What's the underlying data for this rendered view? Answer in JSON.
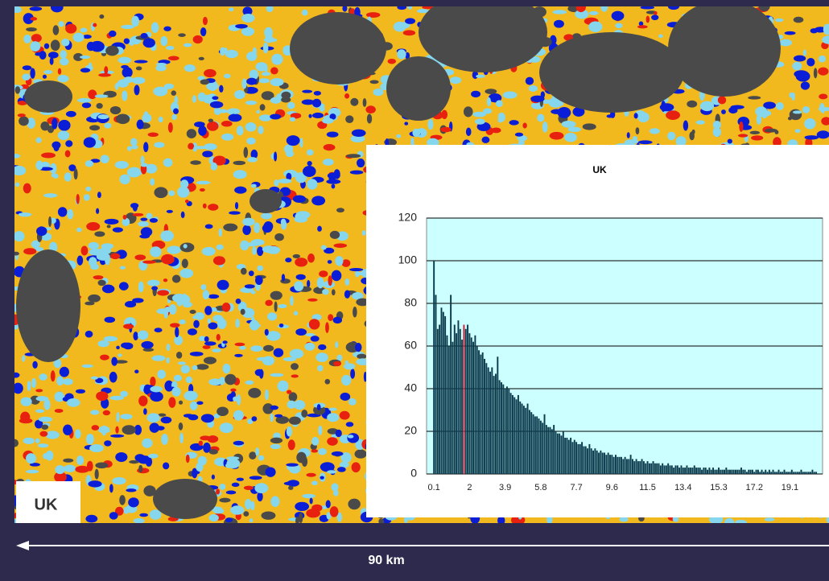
{
  "map_label": "UK",
  "scale_label": "90 km",
  "chart_data": {
    "type": "bar",
    "title": "UK",
    "categories": [
      "0.1",
      null,
      null,
      null,
      null,
      null,
      null,
      null,
      null,
      null,
      null,
      null,
      null,
      null,
      null,
      null,
      null,
      null,
      null,
      "2",
      null,
      null,
      null,
      null,
      null,
      null,
      null,
      null,
      null,
      null,
      null,
      null,
      null,
      null,
      null,
      null,
      null,
      null,
      "3.9",
      null,
      null,
      null,
      null,
      null,
      null,
      null,
      null,
      null,
      null,
      null,
      null,
      null,
      null,
      null,
      null,
      null,
      null,
      "5.8",
      null,
      null,
      null,
      null,
      null,
      null,
      null,
      null,
      null,
      null,
      null,
      null,
      null,
      null,
      null,
      null,
      null,
      null,
      "7.7",
      null,
      null,
      null,
      null,
      null,
      null,
      null,
      null,
      null,
      null,
      null,
      null,
      null,
      null,
      null,
      null,
      null,
      null,
      "9.6",
      null,
      null,
      null,
      null,
      null,
      null,
      null,
      null,
      null,
      null,
      null,
      null,
      null,
      null,
      null,
      null,
      null,
      null,
      "11.5",
      null,
      null,
      null,
      null,
      null,
      null,
      null,
      null,
      null,
      null,
      null,
      null,
      null,
      null,
      null,
      null,
      null,
      null,
      "13.4",
      null,
      null,
      null,
      null,
      null,
      null,
      null,
      null,
      null,
      null,
      null,
      null,
      null,
      null,
      null,
      null,
      null,
      null,
      "15.3",
      null,
      null,
      null,
      null,
      null,
      null,
      null,
      null,
      null,
      null,
      null,
      null,
      null,
      null,
      null,
      null,
      null,
      null,
      "17.2",
      null,
      null,
      null,
      null,
      null,
      null,
      null,
      null,
      null,
      null,
      null,
      null,
      null,
      null,
      null,
      null,
      null,
      null,
      "19.1",
      null,
      null,
      null,
      null,
      null,
      null,
      null,
      null,
      null,
      null,
      null,
      null,
      null,
      null
    ],
    "values": [
      100,
      84,
      68,
      70,
      78,
      76,
      74,
      65,
      60,
      84,
      62,
      70,
      66,
      72,
      68,
      63,
      70,
      68,
      70,
      66,
      64,
      62,
      65,
      60,
      58,
      56,
      57,
      54,
      52,
      50,
      48,
      50,
      46,
      47,
      55,
      44,
      43,
      42,
      40,
      41,
      40,
      38,
      37,
      36,
      35,
      37,
      34,
      33,
      32,
      31,
      33,
      30,
      29,
      28,
      27,
      27,
      26,
      25,
      24,
      28,
      23,
      22,
      22,
      21,
      23,
      20,
      19,
      19,
      18,
      20,
      17,
      17,
      16,
      17,
      15,
      16,
      15,
      14,
      14,
      15,
      13,
      13,
      12,
      14,
      12,
      11,
      12,
      11,
      10,
      11,
      10,
      10,
      9,
      10,
      9,
      9,
      8,
      9,
      8,
      8,
      8,
      7,
      8,
      7,
      7,
      9,
      7,
      6,
      7,
      6,
      6,
      7,
      6,
      5,
      6,
      5,
      5,
      6,
      5,
      5,
      5,
      4,
      5,
      4,
      4,
      5,
      4,
      4,
      3,
      4,
      4,
      3,
      4,
      3,
      3,
      4,
      3,
      3,
      3,
      4,
      3,
      3,
      3,
      2,
      3,
      3,
      2,
      3,
      2,
      3,
      2,
      2,
      3,
      2,
      2,
      2,
      3,
      2,
      2,
      2,
      2,
      2,
      2,
      2,
      3,
      2,
      2,
      1,
      2,
      2,
      2,
      1,
      2,
      2,
      1,
      2,
      1,
      2,
      1,
      2,
      1,
      2,
      1,
      1,
      2,
      1,
      1,
      2,
      1,
      1,
      1,
      2,
      1,
      1,
      1,
      1,
      2,
      1,
      1,
      1,
      1,
      1,
      2,
      1,
      1
    ],
    "color": "#0b3a4c",
    "highlight_index": 16,
    "highlight_color": "#d0203c",
    "ylim": [
      0,
      120
    ],
    "yticks": [
      0,
      20,
      40,
      60,
      80,
      100,
      120
    ],
    "grid": true
  }
}
